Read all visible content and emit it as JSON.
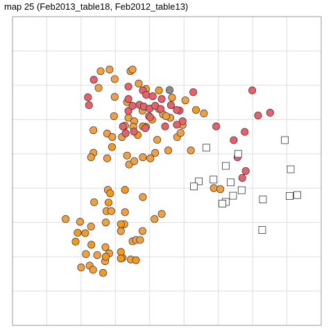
{
  "chart_data": {
    "type": "scatter",
    "title": "map 25 (Feb2013_table18, Feb2012_table13)",
    "xlabel": "",
    "ylabel": "",
    "xlim": [
      0,
      9
    ],
    "ylim": [
      0,
      9
    ],
    "x_gridlines": [
      1,
      2,
      3,
      4,
      5,
      6,
      7,
      8
    ],
    "y_gridlines": [
      1,
      2,
      3,
      4,
      5,
      6,
      7,
      8
    ],
    "grid": true,
    "axis_ticks_labeled": false,
    "colors": {
      "orange": "#f0a040",
      "orange_dark": "#f09a1e",
      "red": "#e8606a",
      "gray": "#8c8c8c",
      "open": "#ffffff",
      "edge": "#333333",
      "grid": "#dddddd",
      "panel_border": "#999999"
    },
    "series": [
      {
        "marker": "circle-filled",
        "color": "orange",
        "points": [
          [
            2.57,
            7.41
          ],
          [
            2.83,
            7.46
          ],
          [
            3.44,
            7.41
          ],
          [
            3.5,
            7.46
          ],
          [
            2.98,
            7.18
          ],
          [
            3.68,
            7.05
          ],
          [
            3.89,
            6.89
          ],
          [
            2.51,
            6.92
          ],
          [
            2.98,
            6.66
          ],
          [
            3.34,
            6.51
          ],
          [
            2.96,
            6.1
          ],
          [
            3.38,
            6.05
          ],
          [
            3.55,
            5.95
          ],
          [
            3.28,
            5.82
          ],
          [
            3.52,
            5.79
          ],
          [
            3.89,
            5.79
          ],
          [
            2.36,
            5.69
          ],
          [
            2.76,
            5.59
          ],
          [
            2.91,
            5.49
          ],
          [
            3.19,
            5.49
          ],
          [
            2.36,
            5.03
          ],
          [
            2.29,
            4.9
          ],
          [
            2.76,
            4.87
          ],
          [
            3.34,
            4.95
          ],
          [
            3.4,
            4.69
          ],
          [
            3.55,
            4.79
          ],
          [
            3.8,
            4.9
          ],
          [
            4.02,
            4.87
          ],
          [
            4.16,
            5.03
          ],
          [
            4.22,
            5.41
          ],
          [
            4.54,
            5.1
          ],
          [
            4.8,
            5.49
          ],
          [
            4.9,
            5.61
          ],
          [
            4.96,
            5.84
          ],
          [
            4.6,
            6.05
          ],
          [
            4.39,
            6.15
          ],
          [
            4.27,
            6.31
          ],
          [
            3.79,
            6.26
          ],
          [
            3.98,
            6.1
          ],
          [
            4.48,
            6.1
          ],
          [
            4.65,
            6.64
          ],
          [
            5.04,
            6.56
          ],
          [
            5.58,
            6.18
          ],
          [
            5.2,
            5.1
          ],
          [
            5.87,
            4.0
          ],
          [
            6.06,
            3.97
          ],
          [
            2.78,
            3.95
          ],
          [
            2.38,
            3.59
          ],
          [
            2.74,
            3.33
          ],
          [
            3.28,
            3.3
          ],
          [
            3.8,
            3.74
          ],
          [
            2.29,
            2.88
          ],
          [
            2.72,
            3.0
          ],
          [
            1.55,
            3.1
          ],
          [
            1.97,
            3.02
          ],
          [
            2.71,
            2.28
          ],
          [
            2.14,
            2.08
          ],
          [
            2.47,
            2.05
          ],
          [
            2.82,
            2.1
          ],
          [
            3.21,
            1.97
          ],
          [
            3.45,
            1.92
          ],
          [
            2.7,
            1.87
          ],
          [
            2.25,
            1.74
          ],
          [
            2.0,
            1.69
          ],
          [
            2.35,
            1.62
          ],
          [
            3.16,
            2.75
          ],
          [
            3.5,
            2.45
          ],
          [
            3.6,
            2.49
          ],
          [
            3.72,
            2.49
          ],
          [
            4.14,
            3.1
          ],
          [
            4.35,
            3.25
          ],
          [
            3.79,
            2.75
          ],
          [
            3.26,
            2.95
          ],
          [
            2.88,
            3.33
          ]
        ]
      },
      {
        "marker": "circle-filled",
        "color": "orange_dark",
        "points": [
          [
            4.07,
            6.0
          ],
          [
            3.8,
            5.8
          ],
          [
            2.9,
            5.2
          ],
          [
            1.9,
            2.7
          ],
          [
            1.84,
            2.44
          ],
          [
            2.12,
            2.69
          ],
          [
            3.16,
            2.95
          ],
          [
            2.72,
            2.0
          ],
          [
            3.16,
            2.14
          ],
          [
            3.16,
            1.95
          ],
          [
            3.28,
            3.95
          ],
          [
            2.8,
            3.58
          ],
          [
            2.85,
            3.85
          ],
          [
            3.65,
            5.55
          ],
          [
            2.3,
            2.35
          ],
          [
            2.64,
            1.53
          ],
          [
            3.6,
            1.9
          ],
          [
            5.35,
            6.28
          ],
          [
            4.27,
            6.85
          ]
        ]
      },
      {
        "marker": "circle-filled",
        "color": "red",
        "points": [
          [
            2.37,
            7.16
          ],
          [
            2.2,
            6.65
          ],
          [
            2.23,
            6.42
          ],
          [
            3.38,
            6.96
          ],
          [
            3.8,
            6.85
          ],
          [
            3.9,
            6.72
          ],
          [
            4.09,
            6.68
          ],
          [
            3.38,
            6.25
          ],
          [
            3.7,
            6.43
          ],
          [
            3.83,
            6.38
          ],
          [
            4.0,
            6.32
          ],
          [
            4.01,
            6.07
          ],
          [
            4.16,
            6.4
          ],
          [
            4.32,
            6.31
          ],
          [
            4.45,
            5.8
          ],
          [
            4.62,
            6.42
          ],
          [
            3.38,
            6.6
          ],
          [
            3.5,
            6.4
          ],
          [
            4.87,
            6.26
          ],
          [
            4.96,
            5.95
          ],
          [
            4.79,
            5.85
          ],
          [
            3.22,
            5.8
          ],
          [
            3.54,
            5.65
          ],
          [
            3.87,
            5.75
          ],
          [
            3.3,
            5.6
          ],
          [
            4.35,
            6.6
          ],
          [
            4.79,
            6.28
          ],
          [
            5.27,
            6.8
          ],
          [
            5.94,
            5.8
          ],
          [
            6.45,
            5.4
          ],
          [
            6.77,
            5.64
          ],
          [
            6.56,
            4.9
          ],
          [
            6.7,
            4.3
          ],
          [
            6.99,
            6.85
          ],
          [
            7.16,
            6.12
          ],
          [
            7.51,
            6.2
          ],
          [
            6.8,
            4.5
          ]
        ]
      },
      {
        "marker": "circle-filled",
        "color": "gray",
        "points": [
          [
            4.58,
            6.86
          ]
        ]
      },
      {
        "marker": "square-open",
        "color": "open",
        "points": [
          [
            5.65,
            5.18
          ],
          [
            6.22,
            4.65
          ],
          [
            6.58,
            5.0
          ],
          [
            5.43,
            4.2
          ],
          [
            5.86,
            4.25
          ],
          [
            6.36,
            4.17
          ],
          [
            6.43,
            3.78
          ],
          [
            6.22,
            3.6
          ],
          [
            6.68,
            3.94
          ],
          [
            7.3,
            3.67
          ],
          [
            7.28,
            2.78
          ],
          [
            7.94,
            5.4
          ],
          [
            8.11,
            4.55
          ],
          [
            8.08,
            3.77
          ],
          [
            8.3,
            3.8
          ],
          [
            5.29,
            4.05
          ],
          [
            6.12,
            3.55
          ]
        ]
      }
    ]
  }
}
